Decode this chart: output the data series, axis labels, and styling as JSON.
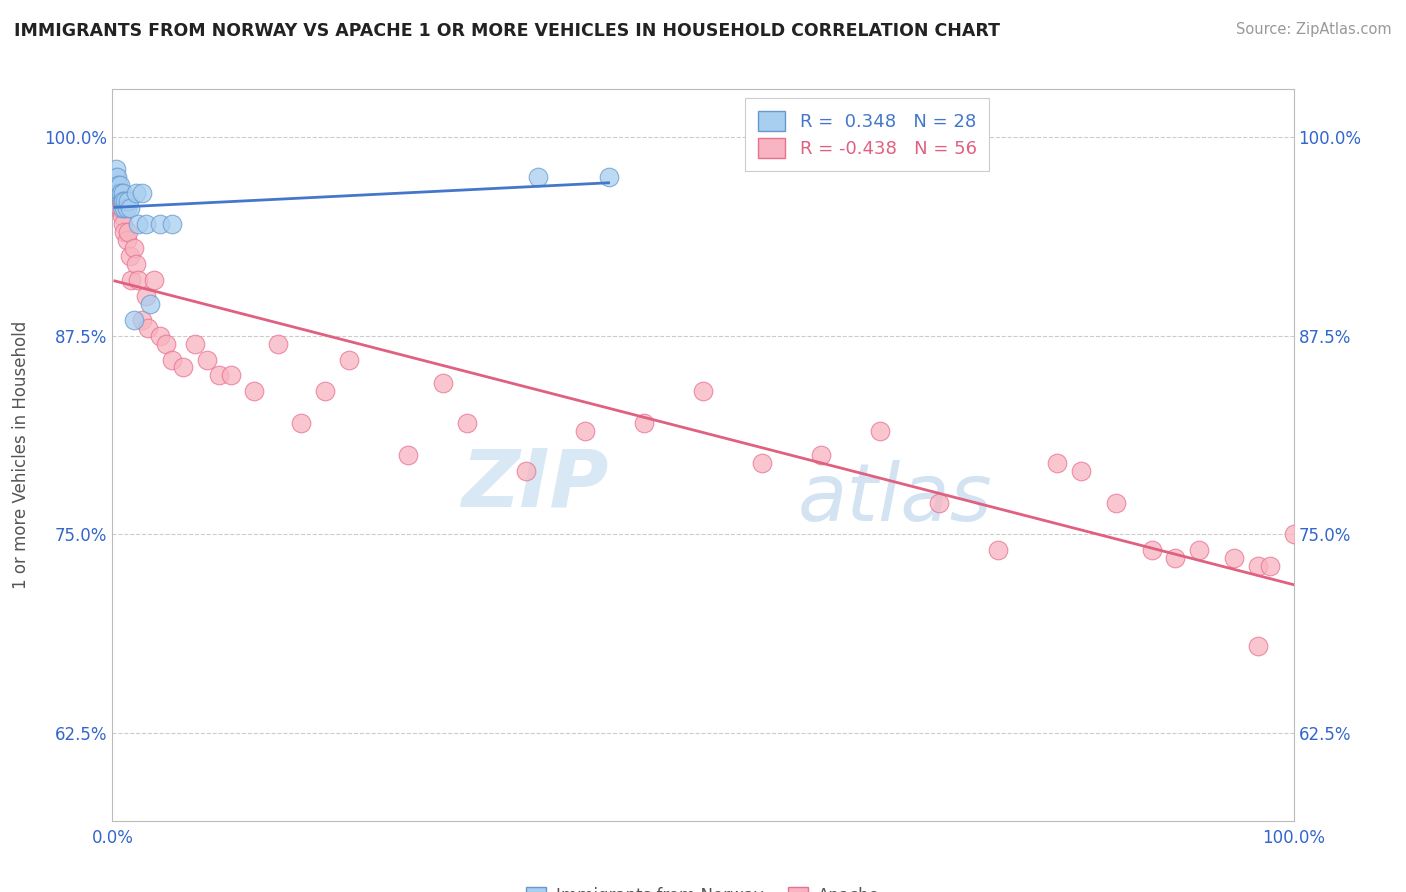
{
  "title": "IMMIGRANTS FROM NORWAY VS APACHE 1 OR MORE VEHICLES IN HOUSEHOLD CORRELATION CHART",
  "source": "Source: ZipAtlas.com",
  "ylabel": "1 or more Vehicles in Household",
  "legend_label1": "Immigrants from Norway",
  "legend_label2": "Apache",
  "R1": 0.348,
  "N1": 28,
  "R2": -0.438,
  "N2": 56,
  "xmin": 0.0,
  "xmax": 1.0,
  "ymin": 0.57,
  "ymax": 1.03,
  "yticks": [
    0.625,
    0.75,
    0.875,
    1.0
  ],
  "ytick_labels": [
    "62.5%",
    "75.0%",
    "87.5%",
    "100.0%"
  ],
  "xticks": [
    0.0,
    1.0
  ],
  "xtick_labels": [
    "0.0%",
    "100.0%"
  ],
  "color_norway": "#a8cef0",
  "color_apache": "#f8b4c0",
  "edge_norway": "#6699cc",
  "edge_apache": "#e87090",
  "line_color_norway": "#4477cc",
  "line_color_apache": "#e06080",
  "watermark_zip": "ZIP",
  "watermark_atlas": "atlas",
  "norway_x": [
    0.002,
    0.003,
    0.003,
    0.004,
    0.005,
    0.005,
    0.006,
    0.006,
    0.007,
    0.008,
    0.008,
    0.009,
    0.009,
    0.01,
    0.011,
    0.012,
    0.013,
    0.015,
    0.018,
    0.02,
    0.022,
    0.025,
    0.028,
    0.032,
    0.04,
    0.05,
    0.36,
    0.42
  ],
  "norway_y": [
    0.97,
    0.975,
    0.98,
    0.975,
    0.97,
    0.965,
    0.965,
    0.97,
    0.965,
    0.96,
    0.955,
    0.965,
    0.96,
    0.955,
    0.96,
    0.955,
    0.96,
    0.955,
    0.885,
    0.965,
    0.945,
    0.965,
    0.945,
    0.895,
    0.945,
    0.945,
    0.975,
    0.975
  ],
  "apache_x": [
    0.002,
    0.003,
    0.004,
    0.005,
    0.006,
    0.007,
    0.008,
    0.009,
    0.01,
    0.012,
    0.013,
    0.015,
    0.016,
    0.018,
    0.02,
    0.022,
    0.025,
    0.028,
    0.03,
    0.035,
    0.04,
    0.045,
    0.05,
    0.06,
    0.07,
    0.08,
    0.09,
    0.1,
    0.12,
    0.14,
    0.16,
    0.18,
    0.2,
    0.25,
    0.28,
    0.3,
    0.35,
    0.4,
    0.45,
    0.5,
    0.55,
    0.6,
    0.65,
    0.7,
    0.75,
    0.8,
    0.82,
    0.85,
    0.88,
    0.9,
    0.92,
    0.95,
    0.97,
    0.97,
    0.98,
    1.0
  ],
  "apache_y": [
    0.965,
    0.97,
    0.96,
    0.955,
    0.955,
    0.96,
    0.95,
    0.945,
    0.94,
    0.935,
    0.94,
    0.925,
    0.91,
    0.93,
    0.92,
    0.91,
    0.885,
    0.9,
    0.88,
    0.91,
    0.875,
    0.87,
    0.86,
    0.855,
    0.87,
    0.86,
    0.85,
    0.85,
    0.84,
    0.87,
    0.82,
    0.84,
    0.86,
    0.8,
    0.845,
    0.82,
    0.79,
    0.815,
    0.82,
    0.84,
    0.795,
    0.8,
    0.815,
    0.77,
    0.74,
    0.795,
    0.79,
    0.77,
    0.74,
    0.735,
    0.74,
    0.735,
    0.68,
    0.73,
    0.73,
    0.75
  ]
}
